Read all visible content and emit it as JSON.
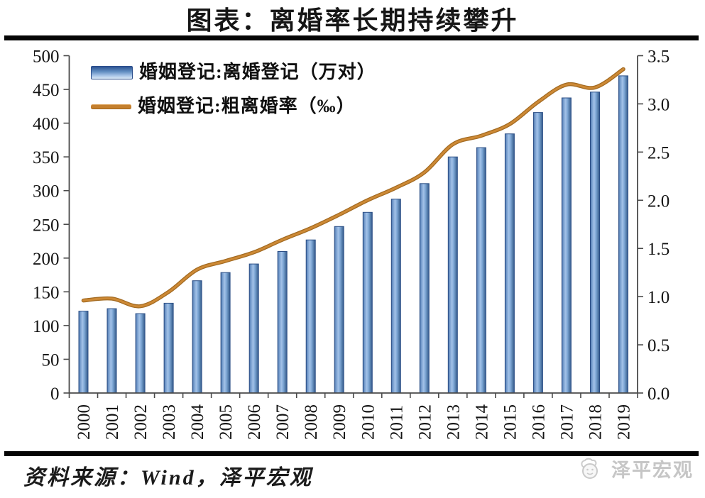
{
  "header": {
    "title": "图表：离婚率长期持续攀升"
  },
  "chart_data": {
    "type": "bar+line combo",
    "title": "图表：离婚率长期持续攀升",
    "grid": false,
    "legend_position": "top-left",
    "categories": [
      "2000",
      "2001",
      "2002",
      "2003",
      "2004",
      "2005",
      "2006",
      "2007",
      "2008",
      "2009",
      "2010",
      "2011",
      "2012",
      "2013",
      "2014",
      "2015",
      "2016",
      "2017",
      "2018",
      "2019"
    ],
    "series": [
      {
        "name": "婚姻登记:离婚登记（万对）",
        "type": "bar",
        "axis": "left",
        "color": "#6F9ACA",
        "values": [
          121.3,
          125.0,
          117.7,
          133.1,
          166.5,
          178.5,
          191.3,
          209.8,
          226.9,
          246.8,
          267.8,
          287.4,
          310.4,
          350.0,
          363.7,
          384.1,
          415.8,
          437.4,
          446.1,
          470.1
        ]
      },
      {
        "name": "婚姻登记:粗离婚率（‰）",
        "type": "line",
        "axis": "right",
        "color": "#C5802E",
        "values": [
          0.96,
          0.98,
          0.9,
          1.05,
          1.28,
          1.37,
          1.46,
          1.59,
          1.71,
          1.85,
          2.0,
          2.13,
          2.29,
          2.58,
          2.67,
          2.79,
          3.02,
          3.2,
          3.17,
          3.36
        ]
      }
    ],
    "left_axis": {
      "min": 0,
      "max": 500,
      "ticks": [
        "500",
        "450",
        "400",
        "350",
        "300",
        "250",
        "200",
        "150",
        "100",
        "50",
        "0"
      ]
    },
    "right_axis": {
      "min": 0,
      "max": 3.5,
      "ticks": [
        "3.5",
        "3.0",
        "2.5",
        "2.0",
        "1.5",
        "1.0",
        "0.5",
        "0.0"
      ]
    }
  },
  "footer": {
    "source": "资料来源：Wind，泽平宏观"
  },
  "watermark": {
    "text": "泽平宏观"
  }
}
